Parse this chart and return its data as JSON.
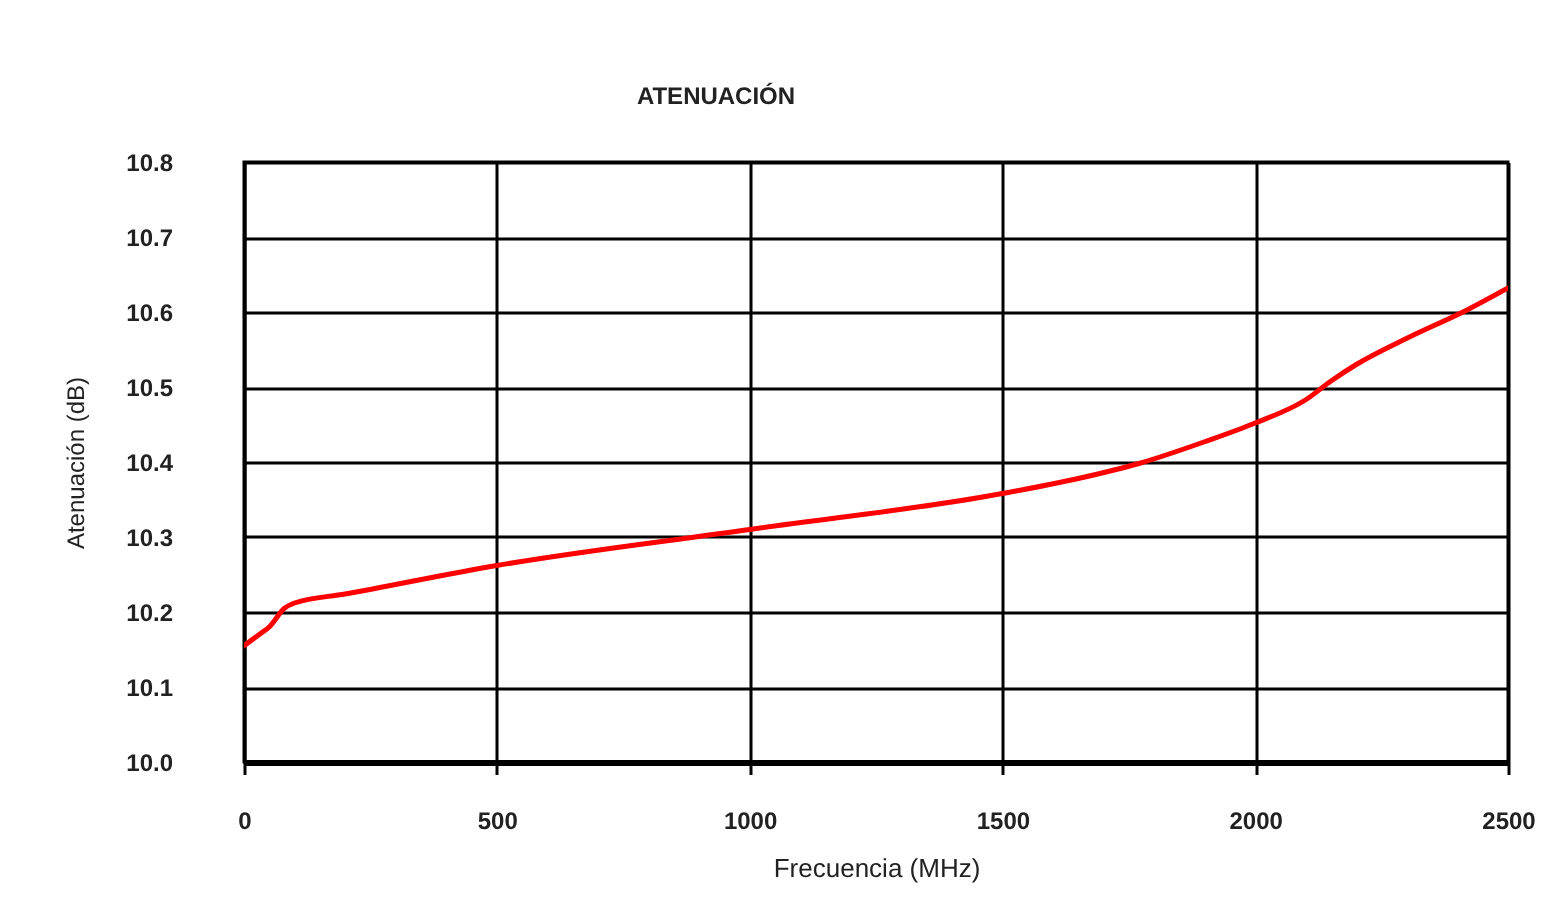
{
  "chart_data": {
    "type": "line",
    "title": "ATENUACIÓN",
    "xlabel": "Frecuencia (MHz)",
    "ylabel": "Atenuación (dB)",
    "x": [
      0,
      30,
      50,
      80,
      100,
      200,
      500,
      1000,
      1500,
      1650,
      1770,
      1900,
      2000,
      2100,
      2150,
      2200,
      2300,
      2420,
      2500
    ],
    "series": [
      {
        "color": "#ff0000",
        "values": [
          10.155,
          10.17,
          10.18,
          10.205,
          10.212,
          10.224,
          10.262,
          10.31,
          10.358,
          10.378,
          10.398,
          10.427,
          10.452,
          10.483,
          10.508,
          10.53,
          10.565,
          10.603,
          10.632
        ]
      }
    ],
    "xlim": [
      0,
      2500
    ],
    "xticks": [
      0,
      500,
      1000,
      1500,
      2000,
      2500
    ],
    "ylim": [
      10,
      10.8
    ],
    "yticks": [
      {
        "value": 10,
        "label": "10.0"
      },
      10.1,
      10.2,
      10.3,
      10.4,
      10.5,
      10.6,
      10.7,
      10.8
    ],
    "grid": true
  }
}
